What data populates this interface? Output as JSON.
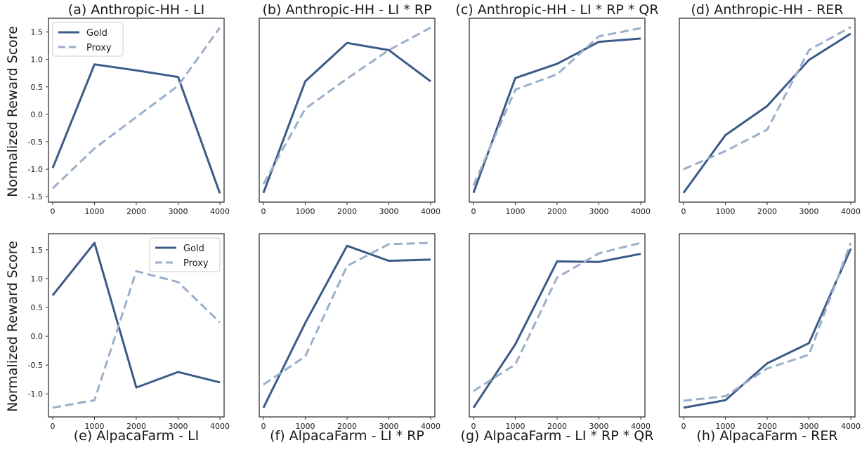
{
  "figure": {
    "ylabel": "Normalized Reward Score",
    "colors": {
      "gold": "#3a5a87",
      "proxy": "#9aafc9",
      "axes": "#333333"
    }
  },
  "chart_data": [
    {
      "type": "line",
      "id": "a",
      "title": "(a) Anthropic-HH - LI",
      "title_pos": "top",
      "x": [
        0,
        1000,
        2000,
        3000,
        4000
      ],
      "xlim": [
        -100,
        4100
      ],
      "ylim": [
        -1.6,
        1.75
      ],
      "yticks": [
        "1.5",
        "1.0",
        "0.5",
        "0.0",
        "-0.5",
        "-1.0",
        "-1.5"
      ],
      "legend": "top-left",
      "series": [
        {
          "name": "Gold",
          "style": "solid",
          "values": [
            -0.98,
            0.91,
            0.8,
            0.68,
            -1.44
          ]
        },
        {
          "name": "Proxy",
          "style": "dashed",
          "values": [
            -1.35,
            -0.62,
            -0.05,
            0.52,
            1.58
          ]
        }
      ]
    },
    {
      "type": "line",
      "id": "b",
      "title": "(b) Anthropic-HH - LI * RP",
      "title_pos": "top",
      "x": [
        0,
        1000,
        2000,
        3000,
        4000
      ],
      "xlim": [
        -100,
        4100
      ],
      "ylim": [
        -1.6,
        1.75
      ],
      "series": [
        {
          "name": "Gold",
          "style": "solid",
          "values": [
            -1.43,
            0.6,
            1.3,
            1.17,
            0.6
          ]
        },
        {
          "name": "Proxy",
          "style": "dashed",
          "values": [
            -1.27,
            0.1,
            0.65,
            1.17,
            1.58
          ]
        }
      ]
    },
    {
      "type": "line",
      "id": "c",
      "title": "(c) Anthropic-HH - LI * RP * QR",
      "title_pos": "top",
      "x": [
        0,
        1000,
        2000,
        3000,
        4000
      ],
      "xlim": [
        -100,
        4100
      ],
      "ylim": [
        -1.6,
        1.75
      ],
      "series": [
        {
          "name": "Gold",
          "style": "solid",
          "values": [
            -1.43,
            0.66,
            0.92,
            1.32,
            1.38
          ]
        },
        {
          "name": "Proxy",
          "style": "dashed",
          "values": [
            -1.3,
            0.45,
            0.73,
            1.42,
            1.57
          ]
        }
      ]
    },
    {
      "type": "line",
      "id": "d",
      "title": "(d) Anthropic-HH - RER",
      "title_pos": "top",
      "x": [
        0,
        1000,
        2000,
        3000,
        4000
      ],
      "xlim": [
        -100,
        4100
      ],
      "ylim": [
        -1.6,
        1.75
      ],
      "series": [
        {
          "name": "Gold",
          "style": "solid",
          "values": [
            -1.43,
            -0.38,
            0.15,
            0.99,
            1.47
          ]
        },
        {
          "name": "Proxy",
          "style": "dashed",
          "values": [
            -1.0,
            -0.67,
            -0.28,
            1.17,
            1.59
          ]
        }
      ]
    },
    {
      "type": "line",
      "id": "e",
      "title": "(e) AlpacaFarm - LI",
      "title_pos": "bottom",
      "x": [
        0,
        1000,
        2000,
        3000,
        4000
      ],
      "xlim": [
        -100,
        4100
      ],
      "ylim": [
        -1.4,
        1.78
      ],
      "yticks": [
        "1.5",
        "1.0",
        "0.5",
        "0.0",
        "-0.5",
        "-1.0"
      ],
      "legend": "top-right",
      "series": [
        {
          "name": "Gold",
          "style": "solid",
          "values": [
            0.71,
            1.62,
            -0.89,
            -0.62,
            -0.8
          ]
        },
        {
          "name": "Proxy",
          "style": "dashed",
          "values": [
            -1.24,
            -1.11,
            1.13,
            0.94,
            0.24
          ]
        }
      ]
    },
    {
      "type": "line",
      "id": "f",
      "title": "(f) AlpacaFarm - LI * RP",
      "title_pos": "bottom",
      "x": [
        0,
        1000,
        2000,
        3000,
        4000
      ],
      "xlim": [
        -100,
        4100
      ],
      "ylim": [
        -1.4,
        1.78
      ],
      "series": [
        {
          "name": "Gold",
          "style": "solid",
          "values": [
            -1.24,
            0.23,
            1.57,
            1.31,
            1.33
          ]
        },
        {
          "name": "Proxy",
          "style": "dashed",
          "values": [
            -0.84,
            -0.35,
            1.22,
            1.6,
            1.62
          ]
        }
      ]
    },
    {
      "type": "line",
      "id": "g",
      "title": "(g) AlpacaFarm - LI * RP * QR",
      "title_pos": "bottom",
      "x": [
        0,
        1000,
        2000,
        3000,
        4000
      ],
      "xlim": [
        -100,
        4100
      ],
      "ylim": [
        -1.4,
        1.78
      ],
      "series": [
        {
          "name": "Gold",
          "style": "solid",
          "values": [
            -1.24,
            -0.14,
            1.3,
            1.29,
            1.43
          ]
        },
        {
          "name": "Proxy",
          "style": "dashed",
          "values": [
            -0.95,
            -0.49,
            1.02,
            1.44,
            1.62
          ]
        }
      ]
    },
    {
      "type": "line",
      "id": "h",
      "title": "(h) AlpacaFarm - RER",
      "title_pos": "bottom",
      "x": [
        0,
        1000,
        2000,
        3000,
        4000
      ],
      "xlim": [
        -100,
        4100
      ],
      "ylim": [
        -1.4,
        1.78
      ],
      "series": [
        {
          "name": "Gold",
          "style": "solid",
          "values": [
            -1.24,
            -1.11,
            -0.47,
            -0.12,
            1.52
          ]
        },
        {
          "name": "Proxy",
          "style": "dashed",
          "values": [
            -1.12,
            -1.04,
            -0.56,
            -0.32,
            1.62
          ]
        }
      ]
    }
  ]
}
